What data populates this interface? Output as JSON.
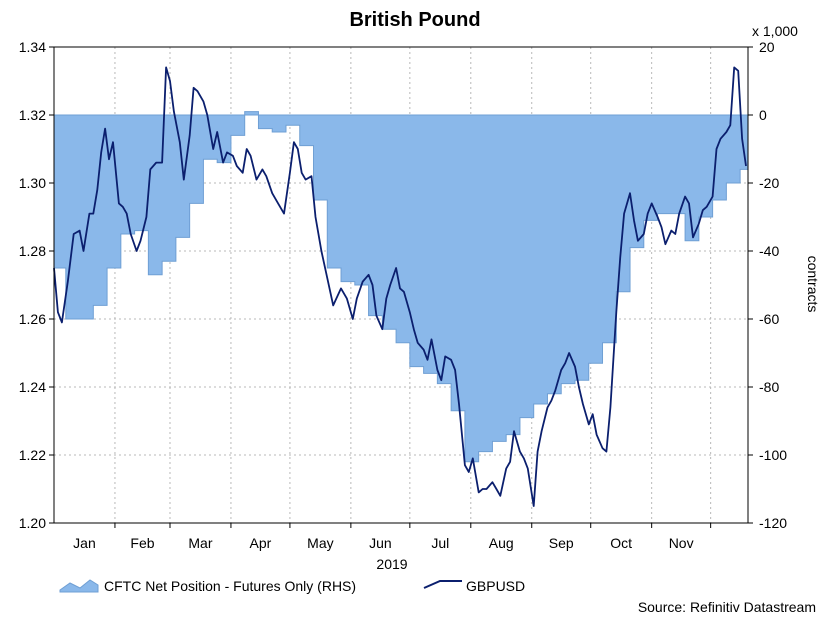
{
  "chart_data": {
    "type": "line",
    "title": "British Pound",
    "x_year_label": "2019",
    "months": [
      "Jan",
      "Feb",
      "Mar",
      "Apr",
      "May",
      "Jun",
      "Jul",
      "Aug",
      "Sep",
      "Oct",
      "Nov"
    ],
    "left_axis": {
      "ylim": [
        1.2,
        1.34
      ],
      "ticks": [
        "1.20",
        "1.22",
        "1.24",
        "1.26",
        "1.28",
        "1.30",
        "1.32",
        "1.34"
      ]
    },
    "right_axis": {
      "label": "contracts",
      "multiplier_label": "x 1,000",
      "ylim": [
        -120,
        20
      ],
      "ticks": [
        "-120",
        "-100",
        "-80",
        "-60",
        "-40",
        "-20",
        "0",
        "20"
      ]
    },
    "grid": true,
    "legend_position": "bottom",
    "source": "Source: Refinitiv Datastream",
    "series": [
      {
        "name": "CFTC Net Position - Futures Only (RHS)",
        "kind": "area",
        "axis": "right",
        "color": "#8ab8ea",
        "edge_color": "#6f9fd4",
        "points": [
          [
            "2019-01-01",
            -45
          ],
          [
            "2019-01-07",
            -60
          ],
          [
            "2019-01-14",
            -60
          ],
          [
            "2019-01-21",
            -56
          ],
          [
            "2019-01-28",
            -45
          ],
          [
            "2019-02-04",
            -35
          ],
          [
            "2019-02-11",
            -34
          ],
          [
            "2019-02-18",
            -47
          ],
          [
            "2019-02-25",
            -43
          ],
          [
            "2019-03-04",
            -36
          ],
          [
            "2019-03-11",
            -26
          ],
          [
            "2019-03-18",
            -13
          ],
          [
            "2019-03-25",
            -14
          ],
          [
            "2019-04-01",
            -6
          ],
          [
            "2019-04-08",
            1
          ],
          [
            "2019-04-15",
            -4
          ],
          [
            "2019-04-22",
            -5
          ],
          [
            "2019-04-29",
            -3
          ],
          [
            "2019-05-06",
            -9
          ],
          [
            "2019-05-13",
            -25
          ],
          [
            "2019-05-20",
            -45
          ],
          [
            "2019-05-27",
            -49
          ],
          [
            "2019-06-03",
            -50
          ],
          [
            "2019-06-10",
            -59
          ],
          [
            "2019-06-17",
            -63
          ],
          [
            "2019-06-24",
            -67
          ],
          [
            "2019-07-01",
            -74
          ],
          [
            "2019-07-08",
            -76
          ],
          [
            "2019-07-15",
            -79
          ],
          [
            "2019-07-22",
            -87
          ],
          [
            "2019-07-29",
            -102
          ],
          [
            "2019-08-05",
            -99
          ],
          [
            "2019-08-12",
            -96
          ],
          [
            "2019-08-19",
            -94
          ],
          [
            "2019-08-26",
            -89
          ],
          [
            "2019-09-02",
            -85
          ],
          [
            "2019-09-09",
            -82
          ],
          [
            "2019-09-16",
            -79
          ],
          [
            "2019-09-23",
            -78
          ],
          [
            "2019-09-30",
            -73
          ],
          [
            "2019-10-07",
            -67
          ],
          [
            "2019-10-14",
            -52
          ],
          [
            "2019-10-21",
            -39
          ],
          [
            "2019-10-28",
            -31
          ],
          [
            "2019-11-04",
            -29
          ],
          [
            "2019-11-11",
            -29
          ],
          [
            "2019-11-18",
            -37
          ],
          [
            "2019-11-25",
            -30
          ],
          [
            "2019-12-02",
            -25
          ],
          [
            "2019-12-09",
            -20
          ],
          [
            "2019-12-16",
            -16
          ],
          [
            "2019-12-20",
            -16
          ]
        ]
      },
      {
        "name": "GBPUSD",
        "kind": "line",
        "axis": "left",
        "color": "#0b1f6e",
        "points": [
          [
            "2019-01-01",
            1.275
          ],
          [
            "2019-01-03",
            1.262
          ],
          [
            "2019-01-05",
            1.259
          ],
          [
            "2019-01-08",
            1.271
          ],
          [
            "2019-01-11",
            1.285
          ],
          [
            "2019-01-14",
            1.286
          ],
          [
            "2019-01-16",
            1.28
          ],
          [
            "2019-01-19",
            1.291
          ],
          [
            "2019-01-21",
            1.291
          ],
          [
            "2019-01-23",
            1.298
          ],
          [
            "2019-01-25",
            1.309
          ],
          [
            "2019-01-27",
            1.316
          ],
          [
            "2019-01-29",
            1.307
          ],
          [
            "2019-01-31",
            1.312
          ],
          [
            "2019-02-03",
            1.294
          ],
          [
            "2019-02-05",
            1.293
          ],
          [
            "2019-02-07",
            1.291
          ],
          [
            "2019-02-09",
            1.285
          ],
          [
            "2019-02-12",
            1.28
          ],
          [
            "2019-02-14",
            1.283
          ],
          [
            "2019-02-17",
            1.29
          ],
          [
            "2019-02-19",
            1.304
          ],
          [
            "2019-02-22",
            1.306
          ],
          [
            "2019-02-25",
            1.306
          ],
          [
            "2019-02-27",
            1.334
          ],
          [
            "2019-03-01",
            1.33
          ],
          [
            "2019-03-03",
            1.321
          ],
          [
            "2019-03-06",
            1.312
          ],
          [
            "2019-03-08",
            1.301
          ],
          [
            "2019-03-11",
            1.314
          ],
          [
            "2019-03-13",
            1.328
          ],
          [
            "2019-03-15",
            1.327
          ],
          [
            "2019-03-18",
            1.324
          ],
          [
            "2019-03-20",
            1.32
          ],
          [
            "2019-03-23",
            1.31
          ],
          [
            "2019-03-25",
            1.315
          ],
          [
            "2019-03-28",
            1.306
          ],
          [
            "2019-03-30",
            1.309
          ],
          [
            "2019-04-02",
            1.308
          ],
          [
            "2019-04-04",
            1.305
          ],
          [
            "2019-04-07",
            1.303
          ],
          [
            "2019-04-09",
            1.31
          ],
          [
            "2019-04-11",
            1.308
          ],
          [
            "2019-04-14",
            1.301
          ],
          [
            "2019-04-17",
            1.304
          ],
          [
            "2019-04-19",
            1.302
          ],
          [
            "2019-04-22",
            1.297
          ],
          [
            "2019-04-25",
            1.294
          ],
          [
            "2019-04-28",
            1.291
          ],
          [
            "2019-05-01",
            1.303
          ],
          [
            "2019-05-03",
            1.312
          ],
          [
            "2019-05-05",
            1.31
          ],
          [
            "2019-05-07",
            1.303
          ],
          [
            "2019-05-09",
            1.301
          ],
          [
            "2019-05-12",
            1.302
          ],
          [
            "2019-05-14",
            1.29
          ],
          [
            "2019-05-17",
            1.28
          ],
          [
            "2019-05-20",
            1.272
          ],
          [
            "2019-05-23",
            1.264
          ],
          [
            "2019-05-27",
            1.269
          ],
          [
            "2019-05-30",
            1.266
          ],
          [
            "2019-06-02",
            1.26
          ],
          [
            "2019-06-04",
            1.266
          ],
          [
            "2019-06-07",
            1.271
          ],
          [
            "2019-06-10",
            1.273
          ],
          [
            "2019-06-12",
            1.27
          ],
          [
            "2019-06-14",
            1.261
          ],
          [
            "2019-06-17",
            1.257
          ],
          [
            "2019-06-19",
            1.266
          ],
          [
            "2019-06-21",
            1.27
          ],
          [
            "2019-06-24",
            1.275
          ],
          [
            "2019-06-26",
            1.269
          ],
          [
            "2019-06-28",
            1.268
          ],
          [
            "2019-07-01",
            1.262
          ],
          [
            "2019-07-03",
            1.257
          ],
          [
            "2019-07-05",
            1.253
          ],
          [
            "2019-07-08",
            1.251
          ],
          [
            "2019-07-10",
            1.248
          ],
          [
            "2019-07-12",
            1.254
          ],
          [
            "2019-07-15",
            1.245
          ],
          [
            "2019-07-17",
            1.242
          ],
          [
            "2019-07-19",
            1.249
          ],
          [
            "2019-07-22",
            1.248
          ],
          [
            "2019-07-24",
            1.245
          ],
          [
            "2019-07-26",
            1.235
          ],
          [
            "2019-07-29",
            1.217
          ],
          [
            "2019-07-31",
            1.215
          ],
          [
            "2019-08-02",
            1.219
          ],
          [
            "2019-08-05",
            1.209
          ],
          [
            "2019-08-07",
            1.21
          ],
          [
            "2019-08-09",
            1.21
          ],
          [
            "2019-08-12",
            1.212
          ],
          [
            "2019-08-14",
            1.21
          ],
          [
            "2019-08-16",
            1.208
          ],
          [
            "2019-08-19",
            1.216
          ],
          [
            "2019-08-21",
            1.218
          ],
          [
            "2019-08-23",
            1.227
          ],
          [
            "2019-08-26",
            1.221
          ],
          [
            "2019-08-28",
            1.219
          ],
          [
            "2019-08-30",
            1.216
          ],
          [
            "2019-09-02",
            1.205
          ],
          [
            "2019-09-04",
            1.221
          ],
          [
            "2019-09-06",
            1.227
          ],
          [
            "2019-09-09",
            1.234
          ],
          [
            "2019-09-11",
            1.236
          ],
          [
            "2019-09-13",
            1.239
          ],
          [
            "2019-09-16",
            1.245
          ],
          [
            "2019-09-18",
            1.247
          ],
          [
            "2019-09-20",
            1.25
          ],
          [
            "2019-09-23",
            1.246
          ],
          [
            "2019-09-25",
            1.24
          ],
          [
            "2019-09-27",
            1.235
          ],
          [
            "2019-09-30",
            1.229
          ],
          [
            "2019-10-02",
            1.232
          ],
          [
            "2019-10-04",
            1.226
          ],
          [
            "2019-10-07",
            1.222
          ],
          [
            "2019-10-09",
            1.221
          ],
          [
            "2019-10-11",
            1.234
          ],
          [
            "2019-10-14",
            1.262
          ],
          [
            "2019-10-16",
            1.278
          ],
          [
            "2019-10-18",
            1.291
          ],
          [
            "2019-10-21",
            1.297
          ],
          [
            "2019-10-23",
            1.289
          ],
          [
            "2019-10-25",
            1.283
          ],
          [
            "2019-10-28",
            1.285
          ],
          [
            "2019-10-30",
            1.291
          ],
          [
            "2019-11-01",
            1.294
          ],
          [
            "2019-11-04",
            1.29
          ],
          [
            "2019-11-06",
            1.287
          ],
          [
            "2019-11-08",
            1.282
          ],
          [
            "2019-11-11",
            1.286
          ],
          [
            "2019-11-13",
            1.285
          ],
          [
            "2019-11-15",
            1.291
          ],
          [
            "2019-11-18",
            1.296
          ],
          [
            "2019-11-20",
            1.294
          ],
          [
            "2019-11-22",
            1.284
          ],
          [
            "2019-11-25",
            1.288
          ],
          [
            "2019-11-27",
            1.292
          ],
          [
            "2019-11-29",
            1.293
          ],
          [
            "2019-12-02",
            1.296
          ],
          [
            "2019-12-04",
            1.31
          ],
          [
            "2019-12-06",
            1.313
          ],
          [
            "2019-12-09",
            1.315
          ],
          [
            "2019-12-11",
            1.317
          ],
          [
            "2019-12-13",
            1.334
          ],
          [
            "2019-12-15",
            1.333
          ],
          [
            "2019-12-17",
            1.313
          ],
          [
            "2019-12-19",
            1.305
          ]
        ]
      }
    ]
  }
}
